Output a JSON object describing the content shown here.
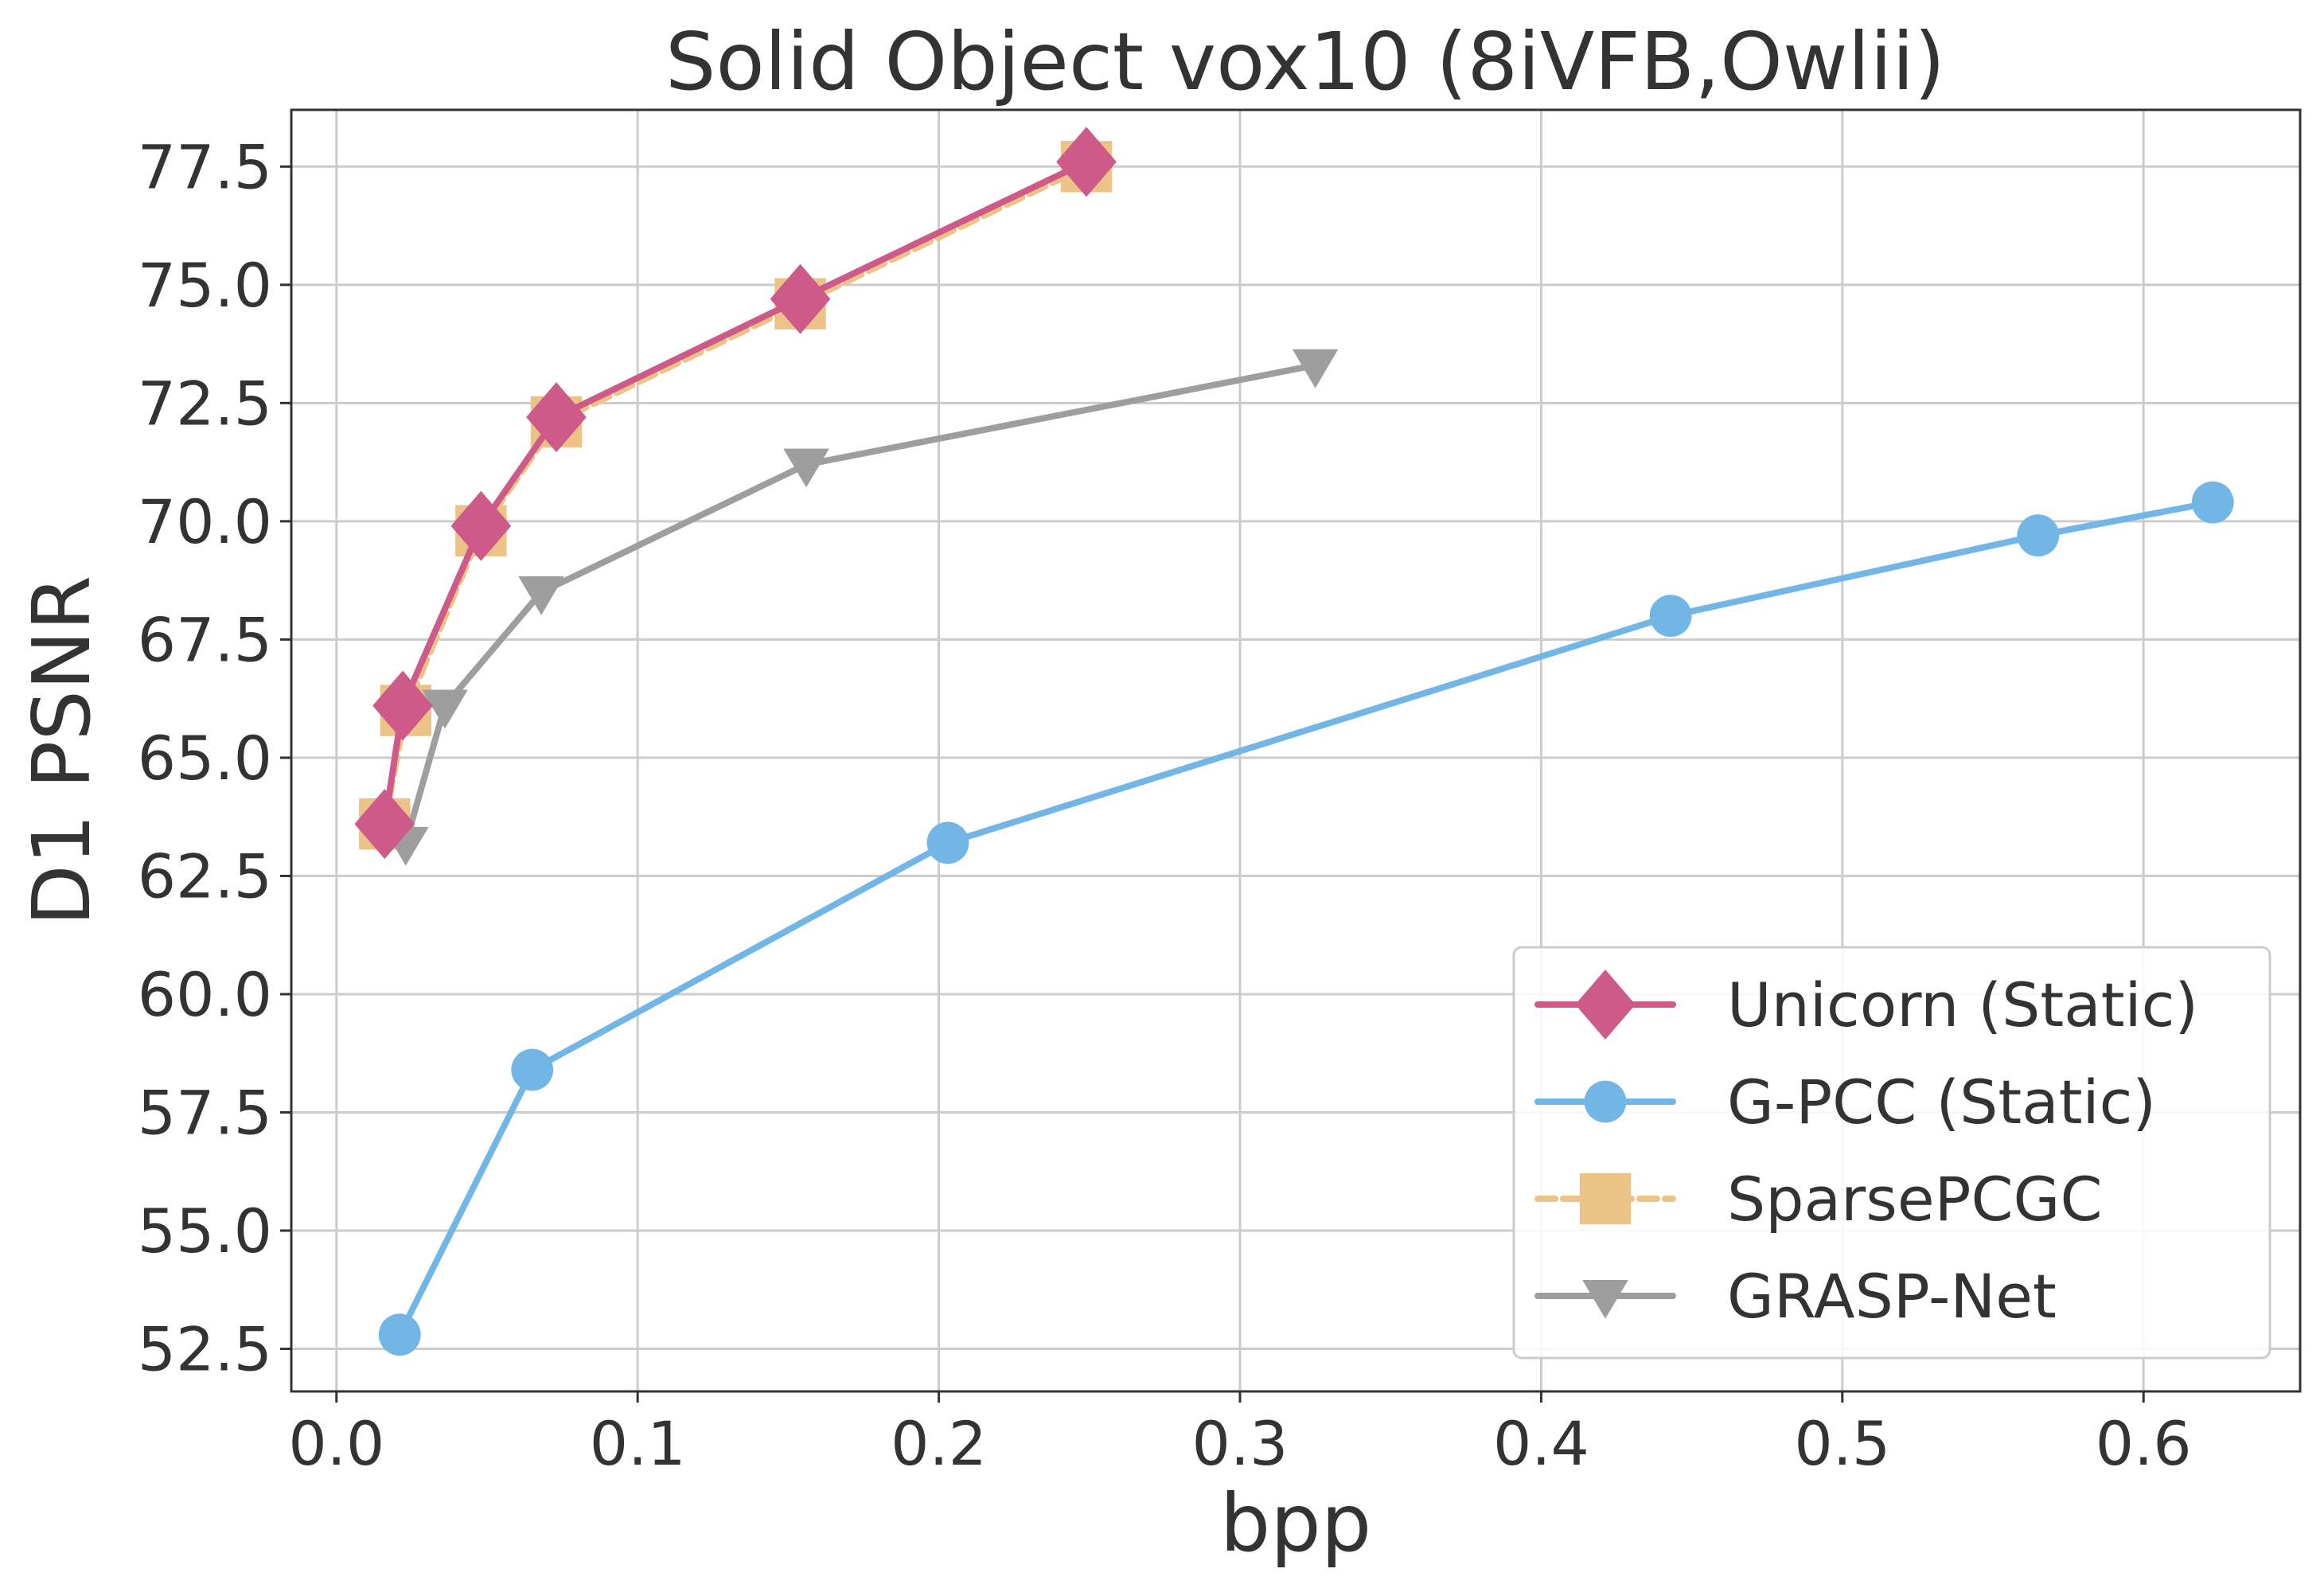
{
  "chart_data": {
    "type": "line",
    "title": "Solid Object vox10 (8iVFB,Owlii)",
    "xlabel": "bpp",
    "ylabel": "D1 PSNR",
    "xlim": [
      -0.015,
      0.652
    ],
    "ylim": [
      51.6,
      78.7
    ],
    "xticks": [
      0.0,
      0.1,
      0.2,
      0.3,
      0.4,
      0.5,
      0.6
    ],
    "xtick_labels": [
      "0.0",
      "0.1",
      "0.2",
      "0.3",
      "0.4",
      "0.5",
      "0.6"
    ],
    "yticks": [
      52.5,
      55.0,
      57.5,
      60.0,
      62.5,
      65.0,
      67.5,
      70.0,
      72.5,
      75.0,
      77.5
    ],
    "ytick_labels": [
      "52.5",
      "55.0",
      "57.5",
      "60.0",
      "62.5",
      "65.0",
      "67.5",
      "70.0",
      "72.5",
      "75.0",
      "77.5"
    ],
    "grid": true,
    "legend_position": "bottom-right",
    "series": [
      {
        "name": "SparsePCGC",
        "color": "#ebc386",
        "marker": "square",
        "line_style": "dashed",
        "x": [
          0.016,
          0.023,
          0.048,
          0.073,
          0.154,
          0.249
        ],
        "y": [
          63.6,
          66.0,
          69.8,
          72.1,
          74.6,
          77.5
        ]
      },
      {
        "name": "G-PCC (Static)",
        "color": "#72b6e6",
        "marker": "circle",
        "line_style": "solid",
        "x": [
          0.021,
          0.065,
          0.203,
          0.443,
          0.565,
          0.623
        ],
        "y": [
          52.8,
          58.4,
          63.2,
          68.0,
          69.7,
          70.4
        ]
      },
      {
        "name": "GRASP-Net",
        "color": "#9e9e9e",
        "marker": "triangle-down",
        "line_style": "solid",
        "x": [
          0.023,
          0.036,
          0.068,
          0.156,
          0.325
        ],
        "y": [
          63.2,
          66.1,
          68.5,
          71.2,
          73.3
        ]
      },
      {
        "name": "Unicorn (Static)",
        "color": "#cd5a88",
        "marker": "diamond",
        "line_style": "solid",
        "x": [
          0.016,
          0.022,
          0.048,
          0.073,
          0.154,
          0.249
        ],
        "y": [
          63.6,
          66.1,
          69.9,
          72.2,
          74.7,
          77.6
        ]
      }
    ],
    "legend_order": [
      "Unicorn (Static)",
      "G-PCC (Static)",
      "SparsePCGC",
      "GRASP-Net"
    ]
  }
}
